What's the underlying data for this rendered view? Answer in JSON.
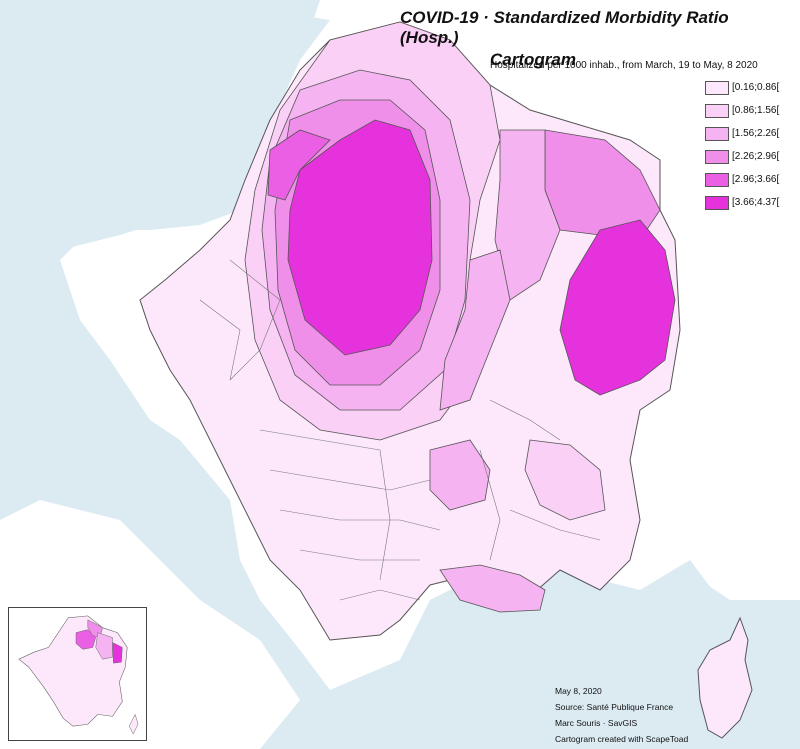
{
  "title_line1": "COVID-19 · Standardized Morbidity Ratio (Hosp.)",
  "title_line2": "Cartogram",
  "subtitle": "Hospitalized per 1000 inhab., from March, 19 to May, 8 2020",
  "legend": [
    {
      "label": "[0.16;0.86[",
      "color": "#fde8fb"
    },
    {
      "label": "[0.86;1.56[",
      "color": "#fad0f6"
    },
    {
      "label": "[1.56;2.26[",
      "color": "#f6b3f1"
    },
    {
      "label": "[2.26;2.96[",
      "color": "#f08fea"
    },
    {
      "label": "[2.96;3.66[",
      "color": "#ea5fe3"
    },
    {
      "label": "[3.66;4.37[",
      "color": "#e632dc"
    }
  ],
  "credits": {
    "date": "May 8, 2020",
    "source": "Source: Santé Publique France",
    "author": "Marc Souris · SavGIS",
    "tool": "Cartogram created with ScapeToad"
  },
  "colors": {
    "sea": "#dcebf2",
    "land": "#ffffff",
    "border": "#555555"
  }
}
